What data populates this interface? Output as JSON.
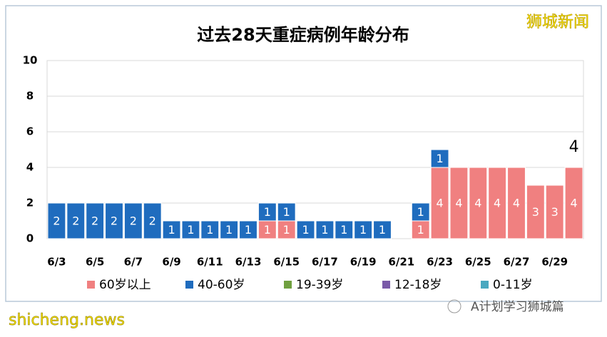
{
  "chart_data": {
    "type": "stacked_bar",
    "title": "过去28天重症病例年龄分布",
    "categories": [
      "6/3",
      null,
      "6/5",
      null,
      "6/7",
      null,
      "6/9",
      null,
      "6/11",
      null,
      "6/13",
      null,
      "6/15",
      null,
      "6/17",
      null,
      "6/19",
      null,
      "6/21",
      null,
      "6/23",
      null,
      "6/25",
      null,
      "6/27",
      null,
      "6/29",
      null
    ],
    "series": [
      {
        "name": "60岁以上",
        "color": "#f08080",
        "values": [
          0,
          0,
          0,
          0,
          0,
          0,
          0,
          0,
          0,
          0,
          0,
          1,
          1,
          0,
          0,
          0,
          0,
          0,
          0,
          1,
          4,
          4,
          4,
          4,
          4,
          3,
          3,
          4
        ]
      },
      {
        "name": "40-60岁",
        "color": "#1f6cbe",
        "values": [
          2,
          2,
          2,
          2,
          2,
          2,
          1,
          1,
          1,
          1,
          1,
          1,
          1,
          1,
          1,
          1,
          1,
          1,
          0,
          1,
          1,
          0,
          0,
          0,
          0,
          0,
          0,
          0
        ]
      },
      {
        "name": "19-39岁",
        "color": "#70a040",
        "values": [
          0,
          0,
          0,
          0,
          0,
          0,
          0,
          0,
          0,
          0,
          0,
          0,
          0,
          0,
          0,
          0,
          0,
          0,
          0,
          0,
          0,
          0,
          0,
          0,
          0,
          0,
          0,
          0
        ]
      },
      {
        "name": "12-18岁",
        "color": "#7a5aa8",
        "values": [
          0,
          0,
          0,
          0,
          0,
          0,
          0,
          0,
          0,
          0,
          0,
          0,
          0,
          0,
          0,
          0,
          0,
          0,
          0,
          0,
          0,
          0,
          0,
          0,
          0,
          0,
          0,
          0
        ]
      },
      {
        "name": "0-11岁",
        "color": "#4aa8c0",
        "values": [
          0,
          0,
          0,
          0,
          0,
          0,
          0,
          0,
          0,
          0,
          0,
          0,
          0,
          0,
          0,
          0,
          0,
          0,
          0,
          0,
          0,
          0,
          0,
          0,
          0,
          0,
          0,
          0
        ]
      }
    ],
    "ylim": [
      0,
      10
    ],
    "yticks": [
      0,
      2,
      4,
      6,
      8,
      10
    ],
    "grid": true,
    "annotation": "4"
  },
  "watermark_top": "狮城新闻",
  "watermark_bottom": "shicheng.news",
  "footer_right": "A计划学习狮城篇"
}
